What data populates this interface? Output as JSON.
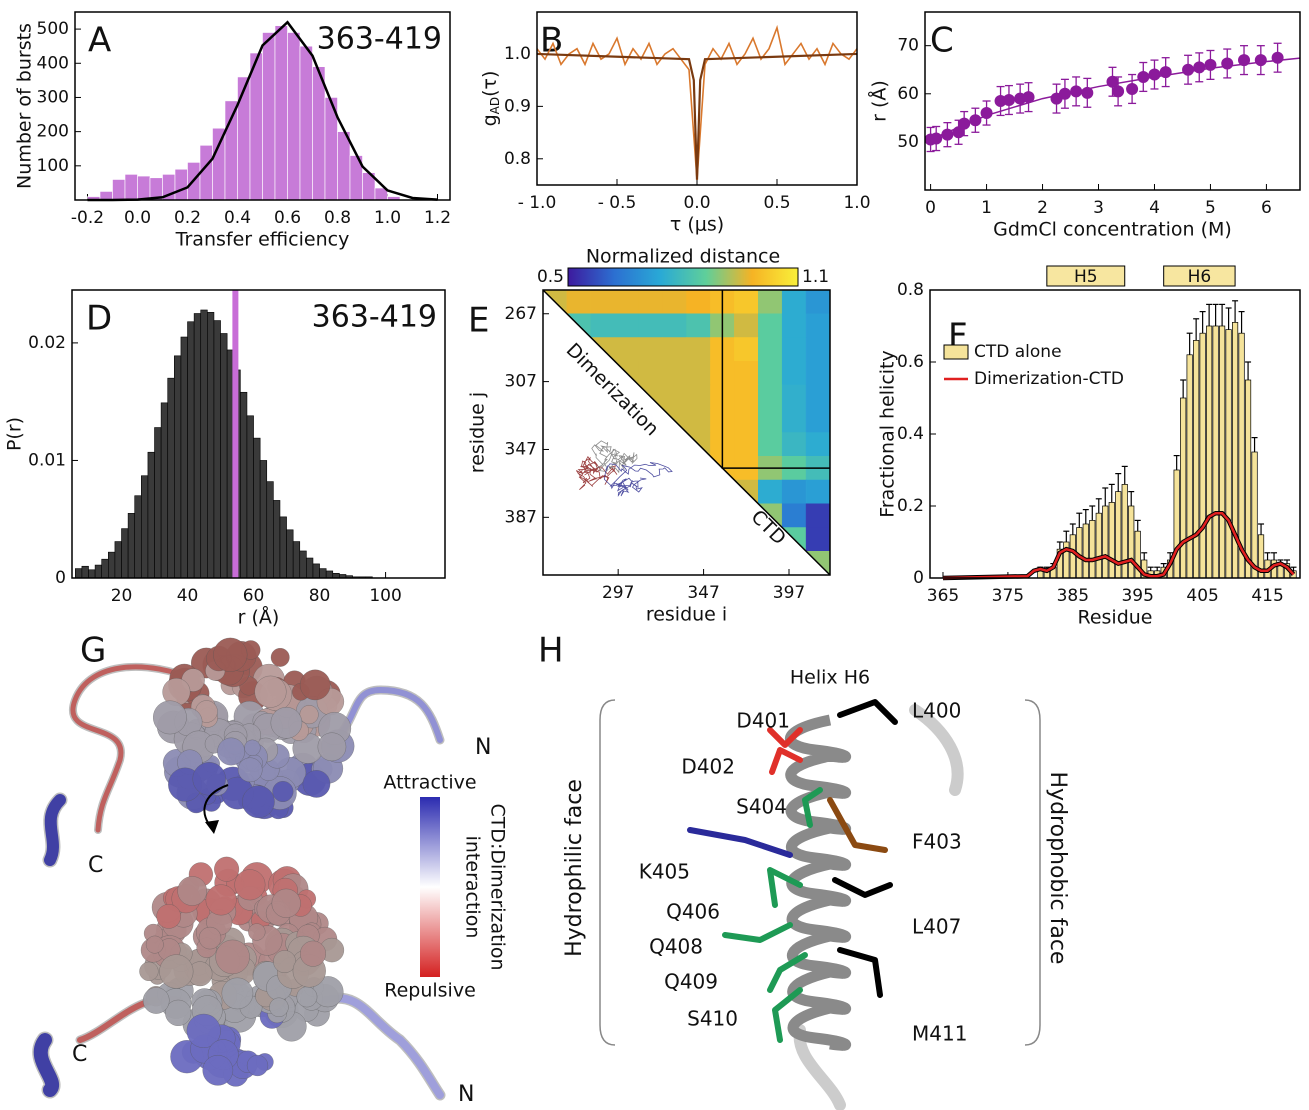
{
  "chart_data": [
    {
      "type": "histogram",
      "panel": "A",
      "annotation": "363-419",
      "xlabel": "Transfer efficiency",
      "ylabel": "Number of bursts",
      "bins": [
        -0.2,
        -0.15,
        -0.1,
        -0.05,
        0,
        0.05,
        0.1,
        0.15,
        0.2,
        0.25,
        0.3,
        0.35,
        0.4,
        0.45,
        0.5,
        0.55,
        0.6,
        0.65,
        0.7,
        0.75,
        0.8,
        0.85,
        0.9,
        0.95,
        1.0,
        1.05
      ],
      "values": [
        10,
        25,
        60,
        75,
        70,
        65,
        75,
        90,
        110,
        160,
        210,
        290,
        360,
        430,
        490,
        510,
        490,
        450,
        390,
        300,
        200,
        130,
        80,
        35,
        10
      ],
      "color": "#c77bd8",
      "edgecolor": "#ffffff",
      "fit": {
        "x": [
          -0.2,
          -0.1,
          0,
          0.1,
          0.2,
          0.3,
          0.4,
          0.5,
          0.6,
          0.7,
          0.8,
          0.9,
          1.0,
          1.1,
          1.2
        ],
        "values": [
          0,
          0,
          1,
          8,
          37,
          121,
          278,
          452,
          520,
          422,
          242,
          98,
          28,
          6,
          1
        ],
        "color": "#000000"
      },
      "xlim": [
        -0.25,
        1.25
      ],
      "ylim": [
        0,
        550
      ],
      "xticks": [
        -0.2,
        {
          "value": 0,
          "label": "0.0"
        },
        0.2,
        0.4,
        0.6,
        0.8,
        {
          "value": 1,
          "label": "1.0"
        },
        1.2
      ],
      "yticks": [
        100,
        200,
        300,
        400,
        500
      ]
    },
    {
      "type": "line",
      "panel": "B",
      "ylabel": "g",
      "ylabel_sub": "AD",
      "ylabel_suffix": "(τ)",
      "xlabel": "τ (μs)",
      "xlim": [
        -1,
        1
      ],
      "ylim": [
        0.75,
        1.08
      ],
      "xticks": [
        {
          "value": -1,
          "label": "- 1.0"
        },
        {
          "value": -0.5,
          "label": "- 0.5"
        },
        {
          "value": 0,
          "label": "0.0"
        },
        0.5,
        {
          "value": 1,
          "label": "1.0"
        }
      ],
      "yticks": [
        0.8,
        0.9,
        {
          "value": 1,
          "label": "1.0"
        }
      ],
      "series": [
        {
          "color": "#d9782d",
          "x": [
            -1.0,
            -0.95,
            -0.9,
            -0.85,
            -0.8,
            -0.75,
            -0.7,
            -0.65,
            -0.6,
            -0.55,
            -0.5,
            -0.45,
            -0.4,
            -0.35,
            -0.3,
            -0.25,
            -0.2,
            -0.15,
            -0.1,
            -0.05,
            0,
            0.05,
            0.1,
            0.15,
            0.2,
            0.25,
            0.3,
            0.35,
            0.4,
            0.45,
            0.5,
            0.55,
            0.6,
            0.65,
            0.7,
            0.75,
            0.8,
            0.85,
            0.9,
            0.95,
            1.0
          ],
          "values": [
            1.01,
            0.99,
            1.02,
            0.98,
            1.0,
            1.01,
            0.98,
            1.02,
            0.99,
            1.0,
            1.03,
            0.98,
            1.01,
            0.99,
            1.02,
            0.98,
            1.0,
            1.01,
            0.99,
            0.97,
            0.76,
            0.98,
            1.01,
            0.99,
            1.02,
            0.98,
            1.0,
            1.03,
            0.99,
            1.01,
            1.05,
            0.98,
            1.0,
            1.02,
            0.99,
            1.01,
            0.98,
            1.02,
            1.0,
            0.99,
            1.01
          ]
        },
        {
          "color": "#7a3a10",
          "x": [
            -1,
            -0.05,
            -0.02,
            0,
            0.02,
            0.05,
            1
          ],
          "values": [
            1.0,
            0.99,
            0.95,
            0.76,
            0.95,
            0.99,
            1.0
          ]
        }
      ]
    },
    {
      "type": "scatter",
      "panel": "C",
      "xlabel": "GdmCl concentration (M)",
      "ylabel": "r (Å)",
      "xlim": [
        -0.1,
        6.6
      ],
      "ylim": [
        40,
        77
      ],
      "xticks": [
        0,
        1,
        2,
        3,
        4,
        5,
        6
      ],
      "yticks": [
        50,
        60,
        70
      ],
      "color": "#8b1a9b",
      "x": [
        0,
        0.1,
        0.3,
        0.5,
        0.6,
        0.8,
        1.0,
        1.25,
        1.4,
        1.6,
        1.75,
        2.25,
        2.4,
        2.6,
        2.8,
        3.25,
        3.35,
        3.6,
        3.8,
        4.0,
        4.2,
        4.6,
        4.8,
        5.0,
        5.3,
        5.6,
        5.9,
        6.2
      ],
      "values": [
        50.5,
        50.7,
        51.5,
        52,
        53.8,
        54.5,
        56,
        58.5,
        58.7,
        59,
        59.3,
        59,
        60,
        60.5,
        60.2,
        62.5,
        60.5,
        61,
        63.5,
        64,
        64.5,
        65,
        65.5,
        66,
        66.3,
        67,
        67,
        67.5
      ],
      "errors": [
        2.5,
        2.5,
        2.5,
        2.5,
        2.5,
        2.5,
        2.5,
        3,
        3,
        3,
        3,
        3,
        3,
        3,
        3,
        3,
        3,
        3,
        3,
        3,
        3,
        3,
        3,
        3,
        3,
        3,
        3,
        3
      ],
      "fit": {
        "x": [
          0,
          1,
          2,
          3,
          4,
          5,
          6,
          6.6
        ],
        "values": [
          50.5,
          55.5,
          59,
          61.5,
          63.5,
          65.3,
          66.7,
          67.4
        ]
      }
    },
    {
      "type": "histogram",
      "panel": "D",
      "annotation": "363-419",
      "xlabel": "r (Å)",
      "ylabel": "P(r)",
      "bins": [
        6,
        8,
        10,
        12,
        14,
        16,
        18,
        20,
        22,
        24,
        26,
        28,
        30,
        32,
        34,
        36,
        38,
        40,
        42,
        44,
        46,
        48,
        50,
        52,
        54,
        56,
        58,
        60,
        62,
        64,
        66,
        68,
        70,
        72,
        74,
        76,
        78,
        80,
        82,
        84,
        86,
        88,
        90,
        92,
        94,
        96
      ],
      "values": [
        0.0008,
        0.001,
        0.0007,
        0.0011,
        0.0016,
        0.0022,
        0.0031,
        0.0042,
        0.0055,
        0.007,
        0.0087,
        0.0107,
        0.0128,
        0.0149,
        0.017,
        0.0189,
        0.0205,
        0.0218,
        0.0225,
        0.0228,
        0.0226,
        0.0219,
        0.0208,
        0.0194,
        0.0177,
        0.0158,
        0.0138,
        0.0119,
        0.01,
        0.0082,
        0.0066,
        0.0052,
        0.0041,
        0.0031,
        0.0023,
        0.0017,
        0.0012,
        0.0008,
        0.0006,
        0.0004,
        0.0003,
        0.0002,
        0.0001,
        0.0001,
        0.0001
      ],
      "color": "#3a3a3a",
      "edgecolor": "#000000",
      "marker": {
        "value": 54.5,
        "color": "#c86dd7"
      },
      "xlim": [
        5,
        118
      ],
      "ylim": [
        0,
        0.0245
      ],
      "xticks": [
        20,
        40,
        60,
        80,
        100
      ],
      "yticks": [
        0,
        0.01,
        0.02
      ]
    },
    {
      "type": "heatmap",
      "panel": "E",
      "title": "Normalized distance",
      "xlabel": "residue i",
      "ylabel": "residue j",
      "edges": [
        253,
        267,
        281,
        295,
        309,
        323,
        337,
        351,
        365,
        379,
        393,
        407,
        421
      ],
      "matrix": [
        [
          0.95,
          0.97,
          0.97,
          0.97,
          0.97,
          0.97,
          0.98,
          1.0,
          1.02,
          0.9,
          0.75,
          0.7
        ],
        [
          null,
          0.82,
          0.8,
          0.8,
          0.8,
          0.8,
          0.82,
          0.9,
          0.95,
          0.85,
          0.75,
          0.72
        ],
        [
          null,
          null,
          0.95,
          0.95,
          0.95,
          0.95,
          0.95,
          1.0,
          1.02,
          0.85,
          0.75,
          0.72
        ],
        [
          null,
          null,
          null,
          0.95,
          0.95,
          0.95,
          0.95,
          1.0,
          1.0,
          0.85,
          0.75,
          0.72
        ],
        [
          null,
          null,
          null,
          null,
          0.95,
          0.95,
          0.95,
          1.0,
          1.0,
          0.85,
          0.76,
          0.72
        ],
        [
          null,
          null,
          null,
          null,
          null,
          0.95,
          0.95,
          1.0,
          1.0,
          0.85,
          0.76,
          0.72
        ],
        [
          null,
          null,
          null,
          null,
          null,
          null,
          0.95,
          1.0,
          1.0,
          0.85,
          0.78,
          0.75
        ],
        [
          null,
          null,
          null,
          null,
          null,
          null,
          null,
          1.0,
          1.0,
          0.9,
          0.85,
          0.8
        ],
        [
          null,
          null,
          null,
          null,
          null,
          null,
          null,
          null,
          0.95,
          0.75,
          0.7,
          0.72
        ],
        [
          null,
          null,
          null,
          null,
          null,
          null,
          null,
          null,
          null,
          0.9,
          0.65,
          0.55
        ],
        [
          null,
          null,
          null,
          null,
          null,
          null,
          null,
          null,
          null,
          null,
          0.85,
          0.55
        ],
        [
          null,
          null,
          null,
          null,
          null,
          null,
          null,
          null,
          null,
          null,
          null,
          0.9
        ]
      ],
      "clim": [
        0.5,
        1.1
      ],
      "cticks": [
        0.5,
        1.1
      ],
      "colormap": [
        "#3d1a9e",
        "#2c6fd1",
        "#29a9d6",
        "#5fcf9a",
        "#f6b324",
        "#f9f03a"
      ],
      "xlim": [
        253,
        421
      ],
      "ylim": [
        253,
        421
      ],
      "y_inverted": true,
      "xticks": [
        297,
        347,
        397
      ],
      "yticks": [
        267,
        307,
        347,
        387
      ],
      "boundary": 358,
      "region_labels": [
        "Dimerization",
        "CTD"
      ]
    },
    {
      "type": "bar",
      "panel": "F",
      "xlabel": "Residue",
      "ylabel": "Fractional helicity",
      "xlim": [
        363,
        420
      ],
      "ylim": [
        0,
        0.8
      ],
      "xticks": [
        365,
        375,
        385,
        395,
        405,
        415
      ],
      "yticks": [
        0,
        0.2,
        0.4,
        0.6,
        0.8
      ],
      "legend": "upper left",
      "helix_color": "#f7e6a0",
      "helices": [
        {
          "label": "H5",
          "start": 381,
          "end": 393
        },
        {
          "label": "H6",
          "start": 399,
          "end": 410
        }
      ],
      "series": [
        {
          "name": "CTD alone",
          "type": "bar",
          "color": "#f5e39a",
          "x": [
            380,
            381,
            382,
            383,
            384,
            385,
            386,
            387,
            388,
            389,
            390,
            391,
            392,
            393,
            394,
            395,
            396,
            397,
            398,
            399,
            400,
            401,
            402,
            403,
            404,
            405,
            406,
            407,
            408,
            409,
            410,
            411,
            412,
            413,
            414,
            415,
            416,
            417,
            418,
            419
          ],
          "values": [
            0.02,
            0.02,
            0.03,
            0.08,
            0.1,
            0.12,
            0.14,
            0.15,
            0.16,
            0.18,
            0.2,
            0.21,
            0.24,
            0.26,
            0.2,
            0.13,
            0.05,
            0.02,
            0.02,
            0.03,
            0.05,
            0.3,
            0.5,
            0.62,
            0.66,
            0.68,
            0.7,
            0.7,
            0.7,
            0.69,
            0.71,
            0.68,
            0.55,
            0.35,
            0.12,
            0.05,
            0.05,
            0.04,
            0.04,
            0.02
          ],
          "errors": [
            0.01,
            0.01,
            0.01,
            0.02,
            0.03,
            0.03,
            0.04,
            0.04,
            0.04,
            0.04,
            0.05,
            0.05,
            0.05,
            0.05,
            0.04,
            0.03,
            0.02,
            0.01,
            0.01,
            0.01,
            0.02,
            0.04,
            0.05,
            0.06,
            0.06,
            0.06,
            0.06,
            0.06,
            0.06,
            0.06,
            0.06,
            0.06,
            0.05,
            0.04,
            0.03,
            0.02,
            0.02,
            0.01,
            0.01,
            0.01
          ]
        },
        {
          "name": "Dimerization-CTD",
          "type": "line",
          "color": "#e02020",
          "x": [
            365,
            378,
            379,
            380,
            381,
            382,
            383,
            384,
            385,
            386,
            387,
            388,
            389,
            390,
            391,
            392,
            393,
            394,
            395,
            396,
            397,
            398,
            399,
            400,
            401,
            402,
            403,
            404,
            405,
            406,
            407,
            408,
            409,
            410,
            411,
            412,
            413,
            414,
            415,
            416,
            417,
            418,
            419
          ],
          "values": [
            0,
            0.005,
            0.02,
            0.025,
            0.02,
            0.03,
            0.07,
            0.08,
            0.075,
            0.06,
            0.05,
            0.05,
            0.055,
            0.06,
            0.05,
            0.04,
            0.045,
            0.05,
            0.03,
            0.01,
            0.005,
            0.005,
            0.01,
            0.04,
            0.08,
            0.1,
            0.11,
            0.12,
            0.14,
            0.17,
            0.18,
            0.18,
            0.16,
            0.12,
            0.08,
            0.05,
            0.03,
            0.02,
            0.02,
            0.035,
            0.04,
            0.03,
            0.01
          ]
        }
      ]
    }
  ],
  "panel_g": {
    "label": "G",
    "termini": [
      "C",
      "N",
      "C",
      "N"
    ],
    "colorbar": {
      "top": "Attractive",
      "bottom": "Repulsive",
      "title": [
        "CTD:Dimerization",
        "interaction"
      ]
    }
  },
  "panel_h": {
    "label": "H",
    "title": "Helix H6",
    "left_face": "Hydrophilic face",
    "right_face": "Hydrophobic face",
    "residues": [
      {
        "label": "L400",
        "color": "#000000"
      },
      {
        "label": "D401",
        "color": "#e0302a"
      },
      {
        "label": "D402",
        "color": "#e0302a"
      },
      {
        "label": "S404",
        "color": "#1e9a55"
      },
      {
        "label": "F403",
        "color": "#8b4a12"
      },
      {
        "label": "K405",
        "color": "#2a2a9a"
      },
      {
        "label": "Q406",
        "color": "#1e9a55"
      },
      {
        "label": "L407",
        "color": "#000000"
      },
      {
        "label": "Q408",
        "color": "#1e9a55"
      },
      {
        "label": "Q409",
        "color": "#1e9a55"
      },
      {
        "label": "S410",
        "color": "#1e9a55"
      },
      {
        "label": "M411",
        "color": "#000000"
      }
    ]
  }
}
